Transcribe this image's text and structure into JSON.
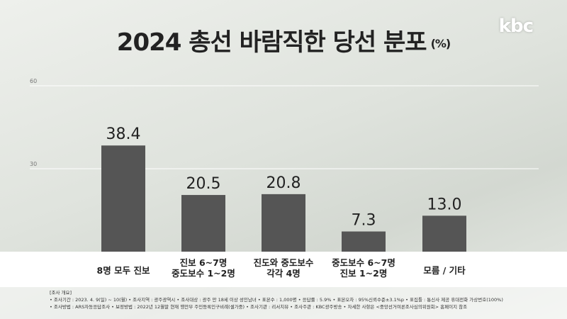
{
  "header": {
    "title": "2024 총선 바람직한 당선 분포",
    "unit": "(%)",
    "logo": "kbc"
  },
  "chart_data": {
    "type": "bar",
    "title": "2024 총선 바람직한 당선 분포",
    "unit": "(%)",
    "categories": [
      "8명 모두 진보",
      "진보 6~7명\n중도보수 1~2명",
      "진도와 중도보수\n각각 4명",
      "중도보수 6~7명\n진보 1~2명",
      "모름 / 기타"
    ],
    "values": [
      38.4,
      20.5,
      20.8,
      7.3,
      13.0
    ],
    "value_labels": [
      "38.4",
      "20.5",
      "20.8",
      "7.3",
      "13.0"
    ],
    "yticks": [
      30,
      60
    ],
    "ylim": [
      0,
      60
    ],
    "grid": true,
    "bar_color": "#555555",
    "xlabel": "",
    "ylabel": ""
  },
  "footer": {
    "heading": "[조사 개요]",
    "line1": "• 조사기간 : 2023. 4. 9(일) ~ 10(월)  • 조사지역 : 광주광역시  • 조사대상 : 광주 만 18세 이상 성인남녀  • 표본수 : 1,000명  • 응답률 : 5.9%  • 표본오차 : 95%신뢰수준±3.1%p  • 표집틀 : 통신사 제공 휴대전화 가상번호(100%)",
    "line2": "• 조사방법 : ARS자동응답조사  • 보정방법 : 2022년 12월말 현재 행안부 주민등록인구비례(셀가중)  • 조사기관 : 리서치뷰  • 조사주관 : KBC광주방송  • 자세한 사항은 <중앙선거여론조사심의위원회> 홈페이지 참조"
  }
}
